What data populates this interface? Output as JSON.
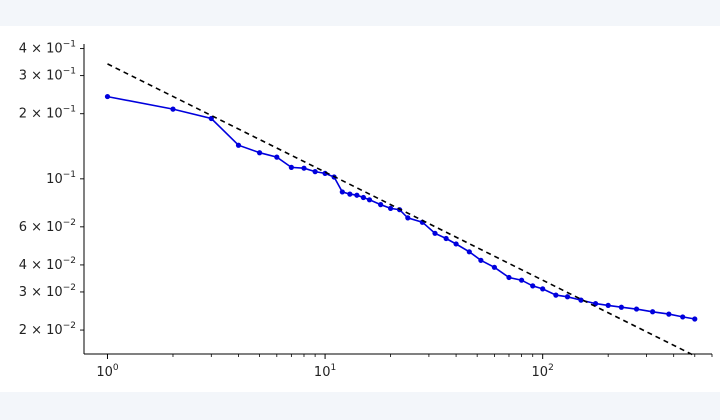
{
  "chart_data": {
    "type": "line",
    "x_scale": "log",
    "y_scale": "log",
    "xlim": [
      0.78,
      600
    ],
    "ylim": [
      0.0155,
      0.42
    ],
    "grid": false,
    "legend": null,
    "xlabel": "",
    "ylabel": "",
    "title": "",
    "x_ticks": [
      {
        "value": 1,
        "base": "10",
        "exp": "0"
      },
      {
        "value": 10,
        "base": "10",
        "exp": "1"
      },
      {
        "value": 100,
        "base": "10",
        "exp": "2"
      }
    ],
    "y_ticks": [
      {
        "value": 0.4,
        "mant": "4 × 10",
        "exp": "−1"
      },
      {
        "value": 0.3,
        "mant": "3 × 10",
        "exp": "−1"
      },
      {
        "value": 0.2,
        "mant": "2 × 10",
        "exp": "−1"
      },
      {
        "value": 0.1,
        "mant": "10",
        "exp": "−1"
      },
      {
        "value": 0.06,
        "mant": "6 × 10",
        "exp": "−2"
      },
      {
        "value": 0.04,
        "mant": "4 × 10",
        "exp": "−2"
      },
      {
        "value": 0.03,
        "mant": "3 × 10",
        "exp": "−2"
      },
      {
        "value": 0.02,
        "mant": "2 × 10",
        "exp": "−2"
      }
    ],
    "series": [
      {
        "color": "#0000dd",
        "marker": "circle",
        "style": "solid",
        "x": [
          1,
          2,
          3,
          4,
          5,
          6,
          7,
          8,
          9,
          10,
          11,
          12,
          13,
          14,
          15,
          16,
          18,
          20,
          22,
          24,
          28,
          32,
          36,
          40,
          46,
          52,
          60,
          70,
          80,
          90,
          100,
          115,
          130,
          150,
          175,
          200,
          230,
          270,
          320,
          380,
          440,
          500
        ],
        "y": [
          0.24,
          0.21,
          0.19,
          0.143,
          0.132,
          0.126,
          0.113,
          0.112,
          0.108,
          0.106,
          0.102,
          0.087,
          0.085,
          0.084,
          0.082,
          0.08,
          0.076,
          0.073,
          0.072,
          0.066,
          0.063,
          0.056,
          0.053,
          0.05,
          0.046,
          0.042,
          0.039,
          0.035,
          0.034,
          0.032,
          0.031,
          0.029,
          0.0285,
          0.0275,
          0.0265,
          0.026,
          0.0255,
          0.025,
          0.0243,
          0.0237,
          0.023,
          0.0225
        ]
      },
      {
        "color": "#000000",
        "marker": "none",
        "style": "dashed",
        "x": [
          1,
          500
        ],
        "y": [
          0.34,
          0.0152
        ]
      }
    ]
  }
}
